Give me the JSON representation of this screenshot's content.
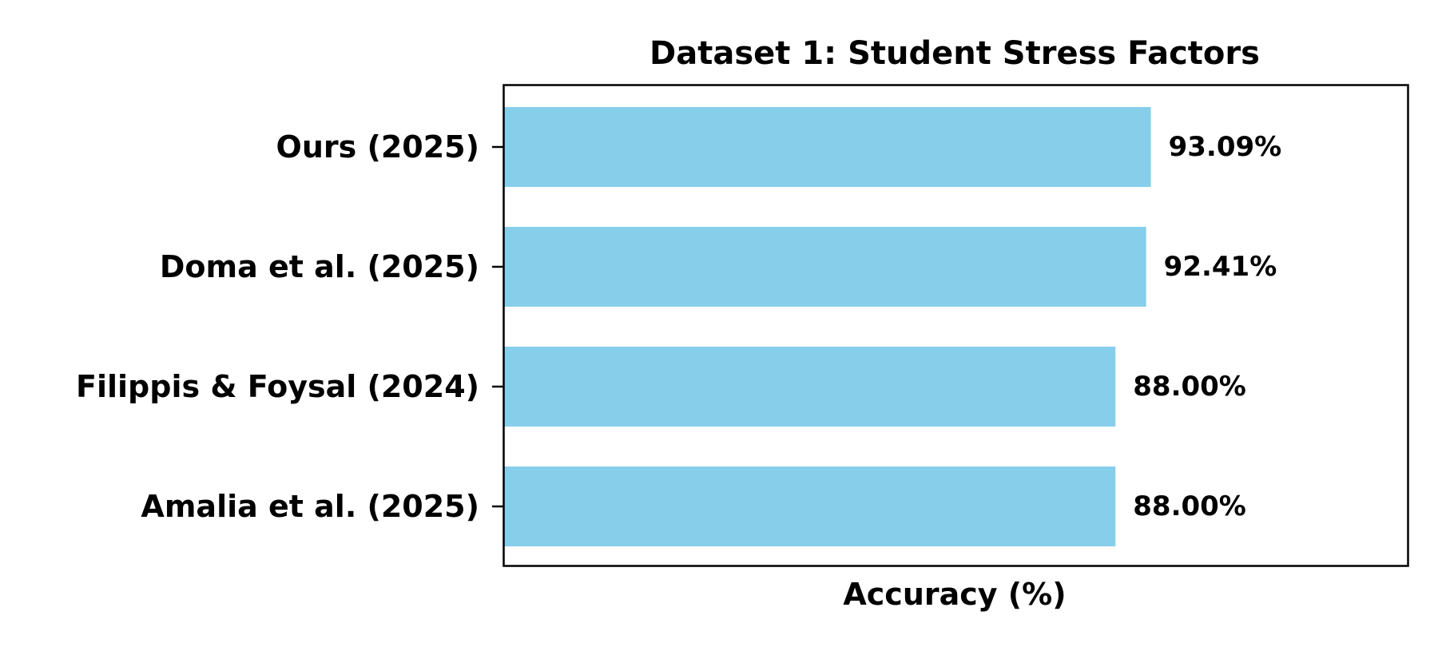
{
  "chart_data": {
    "type": "bar",
    "orientation": "horizontal",
    "title": "Dataset 1: Student Stress Factors",
    "xlabel": "Accuracy (%)",
    "ylabel": "",
    "categories": [
      "Ours (2025)",
      "Doma et al. (2025)",
      "Filippis & Foysal (2024)",
      "Amalia et al. (2025)"
    ],
    "values": [
      93.09,
      92.41,
      88.0,
      88.0
    ],
    "value_labels": [
      "93.09%",
      "92.41%",
      "88.00%",
      "88.00%"
    ],
    "xlim": [
      0,
      130
    ],
    "bar_color": "#87CEEB",
    "grid": false,
    "x_ticks_visible": false
  }
}
